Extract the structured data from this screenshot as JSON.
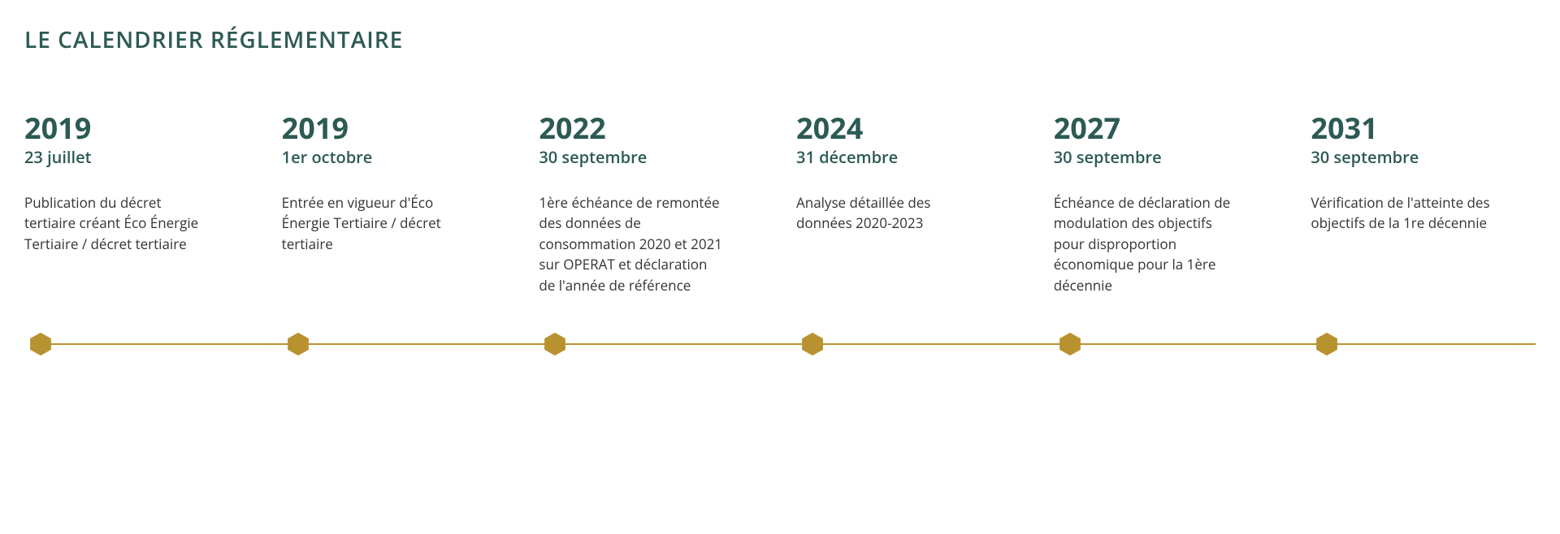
{
  "title": "LE CALENDRIER RÉGLEMENTAIRE",
  "colors": {
    "heading": "#2c5a54",
    "year_date": "#2c5a54",
    "desc_text": "#333333",
    "axis_line": "#b8922f",
    "hex_fill": "#b8922f",
    "background": "#ffffff"
  },
  "typography": {
    "title_fontsize": 28,
    "title_weight": 600,
    "year_fontsize": 36,
    "year_weight": 700,
    "date_fontsize": 20,
    "date_weight": 600,
    "desc_fontsize": 17,
    "desc_lineheight": 1.5
  },
  "timeline": {
    "type": "timeline",
    "axis_line_width": 2,
    "hex_size": 30,
    "items": [
      {
        "year": "2019",
        "date": "23 juillet",
        "desc": "Publication du décret tertiaire créant Éco Énergie Tertiaire / décret tertiaire"
      },
      {
        "year": "2019",
        "date": "1er octobre",
        "desc": "Entrée en vigueur d'Éco Énergie Tertiaire / décret tertiaire"
      },
      {
        "year": "2022",
        "date": "30 septembre",
        "desc": "1ère échéance de remontée des données de consommation 2020 et 2021 sur OPERAT et déclaration de l'année de référence"
      },
      {
        "year": "2024",
        "date": "31 décembre",
        "desc": "Analyse détaillée des données 2020-2023"
      },
      {
        "year": "2027",
        "date": "30 septembre",
        "desc": "Échéance de déclaration de modulation des objectifs pour disproportion économique pour la 1ère décennie"
      },
      {
        "year": "2031",
        "date": "30 septembre",
        "desc": "Vérification de l'atteinte des objectifs de la 1re décennie"
      }
    ]
  }
}
